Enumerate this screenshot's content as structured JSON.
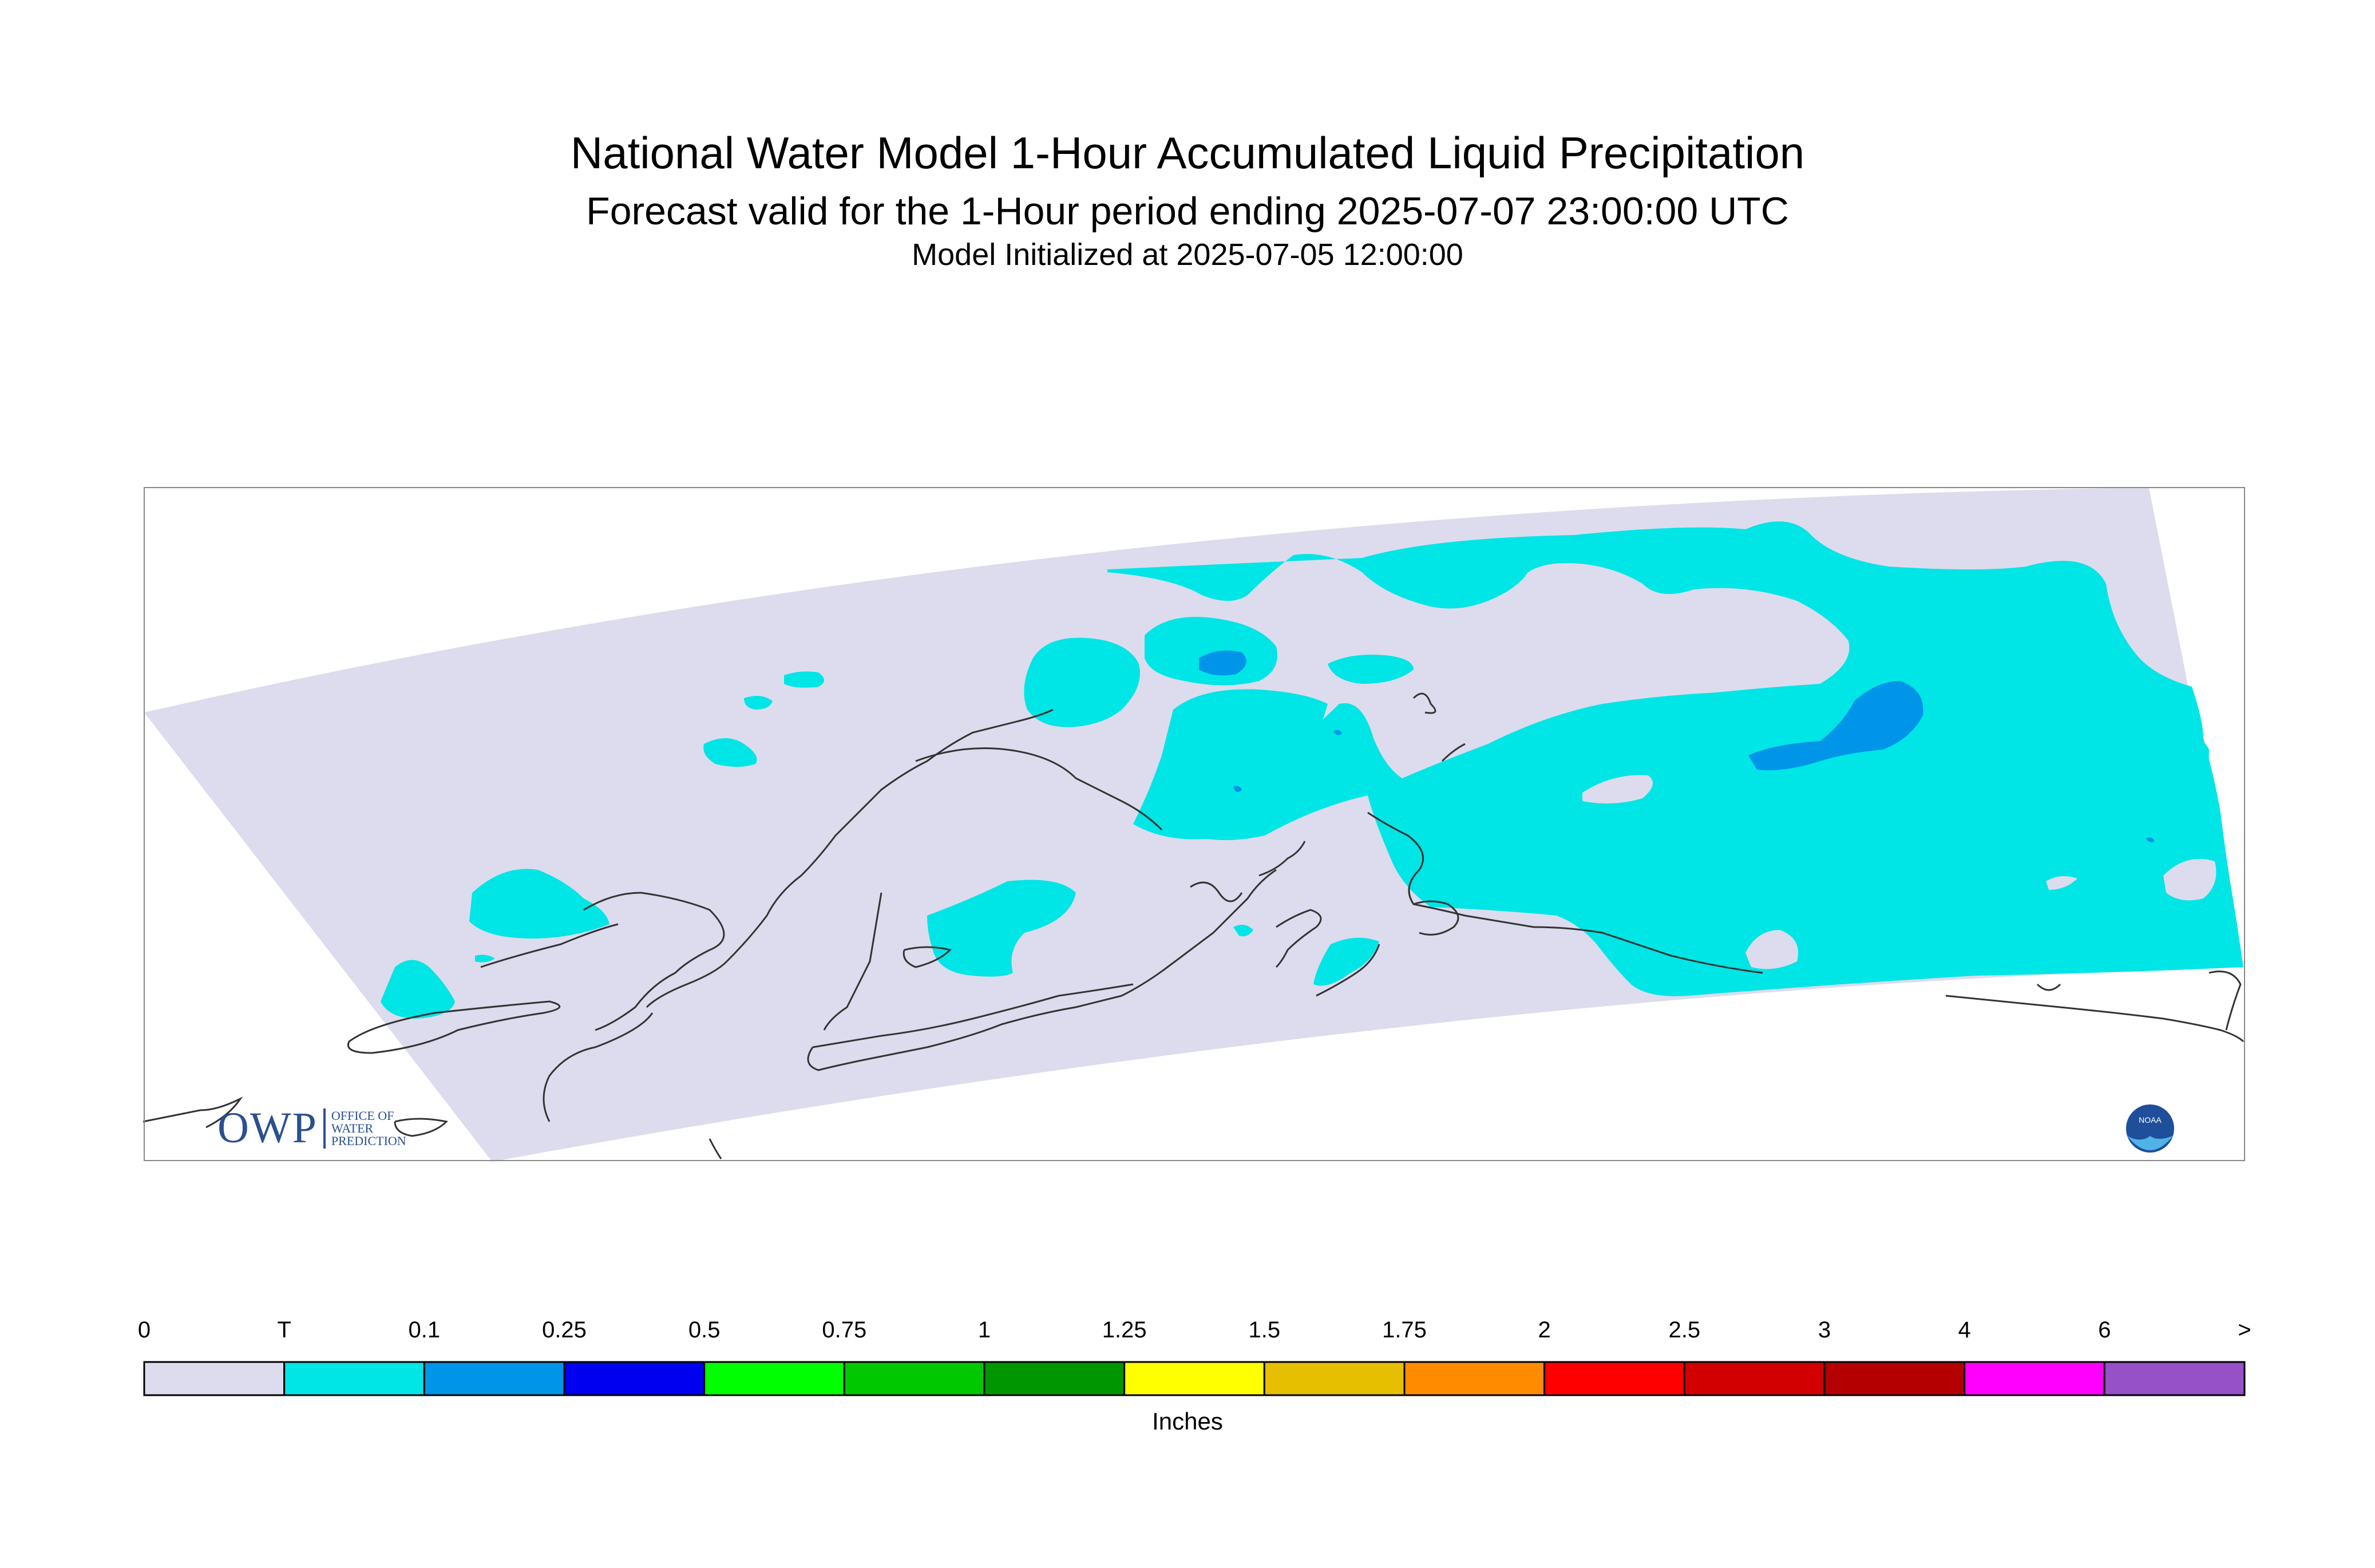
{
  "title": {
    "line1": "National Water Model 1-Hour Accumulated Liquid Precipitation",
    "line2": "Forecast valid for the 1-Hour period ending 2025-07-07 23:00:00 UTC",
    "line3": "Model Initialized at 2025-07-05 12:00:00"
  },
  "legend": {
    "units": "Inches",
    "labels": [
      "0",
      "T",
      "0.1",
      "0.25",
      "0.5",
      "0.75",
      "1",
      "1.25",
      "1.5",
      "1.75",
      "2",
      "2.5",
      "3",
      "4",
      "6",
      ">"
    ],
    "colors": [
      "#dcdcee",
      "#00e5e5",
      "#0095e8",
      "#0000f0",
      "#00ff00",
      "#00c800",
      "#009600",
      "#ffff00",
      "#e6bf00",
      "#ff8c00",
      "#ff0000",
      "#d20000",
      "#b40000",
      "#ff00ff",
      "#9650c8"
    ]
  },
  "map": {
    "background_color": "#dcdcee",
    "trace_color": "#00e5e5",
    "light_color": "#0095e8",
    "coast_color": "#333333"
  },
  "logos": {
    "owp_main": "OWP",
    "owp_sub1": "OFFICE OF",
    "owp_sub2": "WATER",
    "owp_sub3": "PREDICTION",
    "noaa_label": "NOAA"
  }
}
